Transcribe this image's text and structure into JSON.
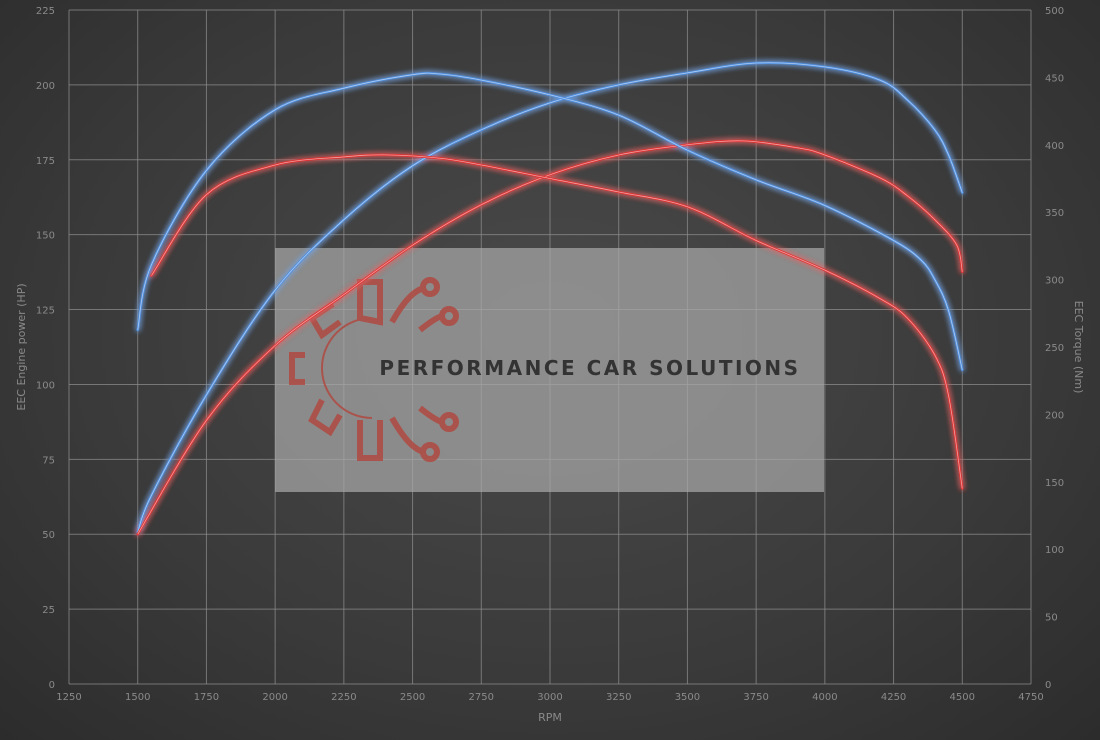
{
  "chart_data": {
    "type": "line",
    "xlabel": "RPM",
    "ylabel": "EEC Engine power (HP)",
    "y2label": "EEC Torque (Nm)",
    "xlim": [
      1250,
      4750
    ],
    "xticks": [
      1250,
      1500,
      1750,
      2000,
      2250,
      2500,
      2750,
      3000,
      3250,
      3500,
      3750,
      4000,
      4250,
      4500,
      4750
    ],
    "ylim": [
      0,
      225
    ],
    "yticks": [
      0,
      25,
      50,
      75,
      100,
      125,
      150,
      175,
      200,
      225
    ],
    "y2lim": [
      0,
      500
    ],
    "y2ticks": [
      0,
      50,
      100,
      150,
      200,
      250,
      300,
      350,
      400,
      450,
      500
    ],
    "grid": true,
    "watermark": "PERFORMANCE CAR SOLUTIONS",
    "series": [
      {
        "axis": "left",
        "color": "#4f8fe0",
        "x": [
          1500,
          1550,
          1750,
          2000,
          2250,
          2500,
          2750,
          3000,
          3250,
          3500,
          3750,
          4000,
          4200,
          4300,
          4400,
          4450,
          4500
        ],
        "values": [
          50.7,
          63,
          96.5,
          131.5,
          155,
          173,
          185,
          194,
          200,
          204,
          207.3,
          206,
          201.6,
          195,
          185,
          176.6,
          164
        ]
      },
      {
        "axis": "left",
        "color": "#e03030",
        "x": [
          1500,
          1750,
          2000,
          2250,
          2500,
          2750,
          3000,
          3250,
          3500,
          3700,
          3900,
          4000,
          4200,
          4300,
          4400,
          4480,
          4500
        ],
        "values": [
          50,
          88,
          113,
          130,
          146.5,
          160,
          170,
          176.6,
          180,
          181.3,
          179,
          176.6,
          169,
          163,
          155,
          146.5,
          137.6
        ]
      },
      {
        "axis": "right",
        "color": "#4f8fe0",
        "x": [
          1500,
          1550,
          1750,
          2000,
          2250,
          2500,
          2600,
          2750,
          3000,
          3250,
          3500,
          3750,
          4000,
          4250,
          4350,
          4400,
          4450,
          4500
        ],
        "values": [
          262.6,
          311,
          381,
          426,
          442,
          452,
          452.5,
          448,
          437,
          422,
          396,
          374,
          355,
          329,
          314.5,
          300,
          277,
          233
        ]
      },
      {
        "axis": "right",
        "color": "#e03030",
        "x": [
          1550,
          1750,
          2000,
          2250,
          2400,
          2600,
          2750,
          3000,
          3250,
          3500,
          3750,
          4000,
          4200,
          4300,
          4400,
          4450,
          4500
        ],
        "values": [
          303,
          363,
          385,
          391,
          392.5,
          390,
          385,
          375,
          365,
          354,
          329,
          307,
          286,
          271.5,
          244,
          214,
          145
        ]
      }
    ]
  }
}
